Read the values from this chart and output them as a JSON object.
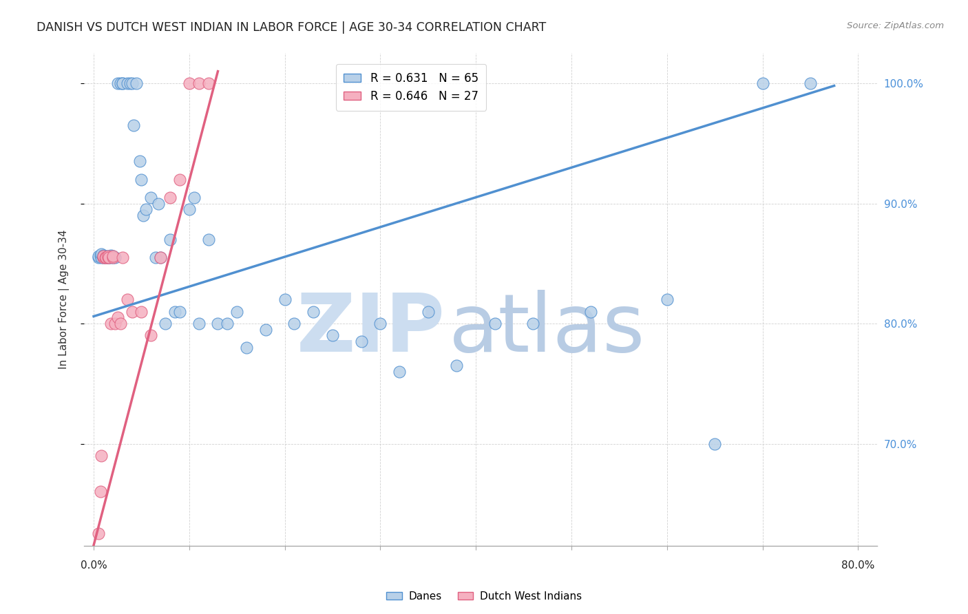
{
  "title": "DANISH VS DUTCH WEST INDIAN IN LABOR FORCE | AGE 30-34 CORRELATION CHART",
  "source": "Source: ZipAtlas.com",
  "ylabel": "In Labor Force | Age 30-34",
  "ytick_labels": [
    "100.0%",
    "90.0%",
    "80.0%",
    "70.0%"
  ],
  "ytick_values": [
    1.0,
    0.9,
    0.8,
    0.7
  ],
  "xlim": [
    -0.01,
    0.82
  ],
  "ylim": [
    0.615,
    1.025
  ],
  "blue_color": "#b8d0e8",
  "pink_color": "#f5b0c0",
  "blue_line_color": "#5090d0",
  "pink_line_color": "#e06080",
  "blue_trend": [
    0.0,
    0.775,
    0.806,
    0.998
  ],
  "pink_trend": [
    -0.01,
    0.13,
    0.585,
    1.01
  ],
  "danes_x": [
    0.005,
    0.005,
    0.007,
    0.008,
    0.008,
    0.01,
    0.01,
    0.01,
    0.012,
    0.013,
    0.015,
    0.015,
    0.016,
    0.017,
    0.018,
    0.018,
    0.02,
    0.02,
    0.022,
    0.025,
    0.028,
    0.03,
    0.03,
    0.035,
    0.038,
    0.04,
    0.042,
    0.045,
    0.048,
    0.05,
    0.052,
    0.055,
    0.06,
    0.065,
    0.068,
    0.07,
    0.075,
    0.08,
    0.085,
    0.09,
    0.1,
    0.105,
    0.11,
    0.12,
    0.13,
    0.14,
    0.15,
    0.16,
    0.18,
    0.2,
    0.21,
    0.23,
    0.25,
    0.28,
    0.3,
    0.32,
    0.35,
    0.38,
    0.42,
    0.46,
    0.52,
    0.6,
    0.65,
    0.7,
    0.75
  ],
  "danes_y": [
    0.855,
    0.856,
    0.857,
    0.855,
    0.858,
    0.855,
    0.856,
    0.857,
    0.855,
    0.856,
    0.855,
    0.856,
    0.855,
    0.856,
    0.855,
    0.857,
    0.855,
    0.856,
    0.855,
    1.0,
    1.0,
    1.0,
    1.0,
    1.0,
    1.0,
    1.0,
    0.965,
    1.0,
    0.935,
    0.92,
    0.89,
    0.895,
    0.905,
    0.855,
    0.9,
    0.855,
    0.8,
    0.87,
    0.81,
    0.81,
    0.895,
    0.905,
    0.8,
    0.87,
    0.8,
    0.8,
    0.81,
    0.78,
    0.795,
    0.82,
    0.8,
    0.81,
    0.79,
    0.785,
    0.8,
    0.76,
    0.81,
    0.765,
    0.8,
    0.8,
    0.81,
    0.82,
    0.7,
    1.0,
    1.0
  ],
  "dwi_x": [
    0.005,
    0.007,
    0.008,
    0.01,
    0.01,
    0.012,
    0.013,
    0.015,
    0.015,
    0.016,
    0.018,
    0.02,
    0.02,
    0.022,
    0.025,
    0.028,
    0.03,
    0.035,
    0.04,
    0.05,
    0.06,
    0.07,
    0.08,
    0.09,
    0.1,
    0.11,
    0.12
  ],
  "dwi_y": [
    0.625,
    0.66,
    0.69,
    0.855,
    0.856,
    0.855,
    0.855,
    0.855,
    0.856,
    0.855,
    0.8,
    0.855,
    0.856,
    0.8,
    0.805,
    0.8,
    0.855,
    0.82,
    0.81,
    0.81,
    0.79,
    0.855,
    0.905,
    0.92,
    1.0,
    1.0,
    1.0
  ]
}
